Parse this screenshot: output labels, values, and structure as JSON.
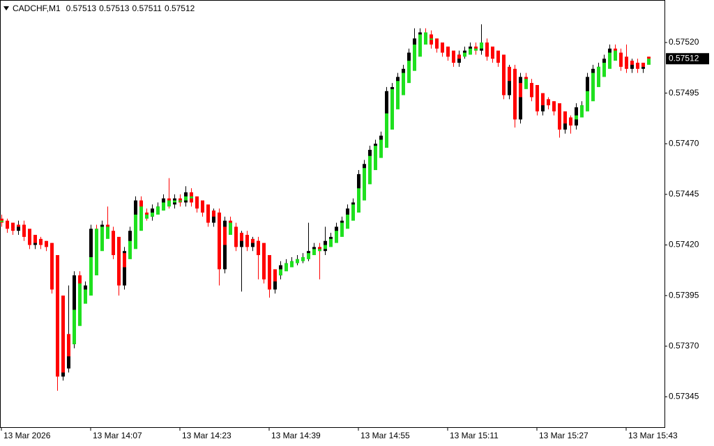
{
  "chart_data": {
    "type": "candlestick",
    "title": "CADCHF,M1",
    "header_values": [
      0.57513,
      0.57513,
      0.57511,
      0.57512
    ],
    "current_price": 0.57512,
    "x": [
      "13 Mar 13:51",
      "13 Mar 13:52",
      "13 Mar 13:53",
      "13 Mar 13:54",
      "13 Mar 13:55",
      "13 Mar 13:56",
      "13 Mar 13:57",
      "13 Mar 13:58",
      "13 Mar 13:59",
      "13 Mar 14:00",
      "13 Mar 14:01",
      "13 Mar 14:02",
      "13 Mar 14:03",
      "13 Mar 14:04",
      "13 Mar 14:05",
      "13 Mar 14:06",
      "13 Mar 14:07",
      "13 Mar 14:08",
      "13 Mar 14:09",
      "13 Mar 14:10",
      "13 Mar 14:11",
      "13 Mar 14:12",
      "13 Mar 14:13",
      "13 Mar 14:14",
      "13 Mar 14:15",
      "13 Mar 14:16",
      "13 Mar 14:17",
      "13 Mar 14:18",
      "13 Mar 14:19",
      "13 Mar 14:20",
      "13 Mar 14:21",
      "13 Mar 14:22",
      "13 Mar 14:23",
      "13 Mar 14:24",
      "13 Mar 14:25",
      "13 Mar 14:26",
      "13 Mar 14:27",
      "13 Mar 14:28",
      "13 Mar 14:29",
      "13 Mar 14:30",
      "13 Mar 14:31",
      "13 Mar 14:32",
      "13 Mar 14:33",
      "13 Mar 14:34",
      "13 Mar 14:35",
      "13 Mar 14:36",
      "13 Mar 14:37",
      "13 Mar 14:38",
      "13 Mar 14:39",
      "13 Mar 14:40",
      "13 Mar 14:41",
      "13 Mar 14:42",
      "13 Mar 14:43",
      "13 Mar 14:44",
      "13 Mar 14:45",
      "13 Mar 14:46",
      "13 Mar 14:47",
      "13 Mar 14:48",
      "13 Mar 14:49",
      "13 Mar 14:50",
      "13 Mar 14:51",
      "13 Mar 14:52",
      "13 Mar 14:53",
      "13 Mar 14:54",
      "13 Mar 14:55",
      "13 Mar 14:56",
      "13 Mar 14:57",
      "13 Mar 14:58",
      "13 Mar 14:59",
      "13 Mar 15:00",
      "13 Mar 15:01",
      "13 Mar 15:02",
      "13 Mar 15:03",
      "13 Mar 15:04",
      "13 Mar 15:05",
      "13 Mar 15:06",
      "13 Mar 15:07",
      "13 Mar 15:08",
      "13 Mar 15:09",
      "13 Mar 15:10",
      "13 Mar 15:11",
      "13 Mar 15:12",
      "13 Mar 15:13",
      "13 Mar 15:14",
      "13 Mar 15:15",
      "13 Mar 15:16",
      "13 Mar 15:17",
      "13 Mar 15:18",
      "13 Mar 15:19",
      "13 Mar 15:20",
      "13 Mar 15:21",
      "13 Mar 15:22",
      "13 Mar 15:23",
      "13 Mar 15:24",
      "13 Mar 15:25",
      "13 Mar 15:26",
      "13 Mar 15:27",
      "13 Mar 15:28",
      "13 Mar 15:29",
      "13 Mar 15:30",
      "13 Mar 15:31",
      "13 Mar 15:32",
      "13 Mar 15:33",
      "13 Mar 15:34",
      "13 Mar 15:35",
      "13 Mar 15:36",
      "13 Mar 15:37",
      "13 Mar 15:38",
      "13 Mar 15:39",
      "13 Mar 15:40",
      "13 Mar 15:41",
      "13 Mar 15:42",
      "13 Mar 15:43",
      "13 Mar 15:44",
      "13 Mar 15:45",
      "13 Mar 15:46",
      "13 Mar 15:47"
    ],
    "open": [
      0.57433,
      0.57431,
      0.57428,
      0.57427,
      0.5743,
      0.57424,
      0.5742,
      0.57422,
      0.5742,
      0.57419,
      0.57398,
      0.57355,
      0.57359,
      0.57371,
      0.57405,
      0.57396,
      0.574,
      0.57428,
      0.57427,
      0.5743,
      0.57427,
      0.57415,
      0.574,
      0.57417,
      0.57427,
      0.57442,
      0.57436,
      0.57434,
      0.57438,
      0.57439,
      0.57443,
      0.5744,
      0.57443,
      0.57441,
      0.57446,
      0.57441,
      0.57438,
      0.57436,
      0.57431,
      0.57436,
      0.57408,
      0.57432,
      0.57429,
      0.57419,
      0.57425,
      0.57419,
      0.57422,
      0.57415,
      0.57403,
      0.57398,
      0.57405,
      0.5741,
      0.57411,
      0.57412,
      0.57413,
      0.57414,
      0.57417,
      0.57419,
      0.57417,
      0.57422,
      0.57424,
      0.57429,
      0.57432,
      0.57438,
      0.57441,
      0.57455,
      0.5746,
      0.57467,
      0.5747,
      0.57474,
      0.57496,
      0.57498,
      0.57503,
      0.57507,
      0.57515,
      0.57522,
      0.57525,
      0.57524,
      0.57519,
      0.57517,
      0.57515,
      0.57513,
      0.5751,
      0.57514,
      0.57516,
      0.57518,
      0.57516,
      0.5752,
      0.57513,
      0.57512,
      0.5751,
      0.57494,
      0.57507,
      0.57482,
      0.57503,
      0.575,
      0.57493,
      0.57486,
      0.57491,
      0.57489,
      0.57486,
      0.57477,
      0.57482,
      0.57479,
      0.57488,
      0.57489,
      0.57503,
      0.57507,
      0.57508,
      0.57512,
      0.57517,
      0.57515,
      0.57508,
      0.57507,
      0.5751,
      0.57507,
      0.57513
    ],
    "high": [
      0.57435,
      0.57433,
      0.5743,
      0.57432,
      0.57432,
      0.57426,
      0.57424,
      0.57424,
      0.57422,
      0.57421,
      0.574,
      0.57361,
      0.574,
      0.57407,
      0.57407,
      0.57402,
      0.5743,
      0.5743,
      0.57432,
      0.57439,
      0.57429,
      0.57417,
      0.57419,
      0.57429,
      0.57444,
      0.57444,
      0.57438,
      0.5744,
      0.57441,
      0.57445,
      0.57453,
      0.57445,
      0.57445,
      0.57449,
      0.57448,
      0.57443,
      0.5744,
      0.57438,
      0.57438,
      0.57438,
      0.57434,
      0.57434,
      0.57431,
      0.57427,
      0.57427,
      0.57424,
      0.57424,
      0.57417,
      0.57405,
      0.57407,
      0.57412,
      0.57413,
      0.57414,
      0.57415,
      0.57416,
      0.57431,
      0.57421,
      0.57421,
      0.57429,
      0.57426,
      0.57431,
      0.57434,
      0.5744,
      0.57443,
      0.57457,
      0.57462,
      0.57469,
      0.57472,
      0.57476,
      0.57498,
      0.575,
      0.57505,
      0.57509,
      0.57517,
      0.57527,
      0.57527,
      0.57527,
      0.57526,
      0.57521,
      0.57519,
      0.57517,
      0.57515,
      0.57516,
      0.57518,
      0.5752,
      0.5752,
      0.57529,
      0.57522,
      0.57515,
      0.57514,
      0.57512,
      0.57509,
      0.57509,
      0.57505,
      0.57505,
      0.57502,
      0.57495,
      0.57493,
      0.57493,
      0.57491,
      0.57488,
      0.57484,
      0.57484,
      0.5749,
      0.57491,
      0.57505,
      0.57509,
      0.5751,
      0.57514,
      0.57519,
      0.57519,
      0.57517,
      0.57519,
      0.57512,
      0.57512,
      0.5751,
      0.57513
    ],
    "low": [
      0.57429,
      0.57426,
      0.57425,
      0.57425,
      0.57422,
      0.57418,
      0.57418,
      0.57418,
      0.57417,
      0.57396,
      0.57348,
      0.57353,
      0.57357,
      0.57369,
      0.57394,
      0.57394,
      0.57398,
      0.57425,
      0.57425,
      0.57425,
      0.57413,
      0.57395,
      0.57398,
      0.57415,
      0.57425,
      0.57434,
      0.57432,
      0.57432,
      0.57436,
      0.57437,
      0.57438,
      0.57438,
      0.57439,
      0.57439,
      0.57439,
      0.57436,
      0.57434,
      0.57429,
      0.57429,
      0.574,
      0.57406,
      0.57427,
      0.57417,
      0.57397,
      0.57417,
      0.57417,
      0.57403,
      0.57401,
      0.57394,
      0.57396,
      0.57403,
      0.57408,
      0.57409,
      0.5741,
      0.57411,
      0.57412,
      0.57415,
      0.57403,
      0.57415,
      0.5742,
      0.57422,
      0.57427,
      0.5743,
      0.57436,
      0.57439,
      0.57453,
      0.57458,
      0.57465,
      0.57468,
      0.57472,
      0.57494,
      0.57496,
      0.57501,
      0.57505,
      0.57513,
      0.5752,
      0.57522,
      0.57517,
      0.57515,
      0.57513,
      0.57511,
      0.57508,
      0.57508,
      0.57512,
      0.57514,
      0.57514,
      0.57514,
      0.57511,
      0.5751,
      0.57508,
      0.57492,
      0.57492,
      0.57478,
      0.5748,
      0.57498,
      0.57491,
      0.57484,
      0.57484,
      0.57487,
      0.57484,
      0.57473,
      0.57475,
      0.57475,
      0.57477,
      0.57486,
      0.57487,
      0.57501,
      0.57505,
      0.57506,
      0.5751,
      0.57513,
      0.57506,
      0.57505,
      0.57505,
      0.57505,
      0.57505,
      0.57511
    ],
    "close": [
      0.57431,
      0.57428,
      0.57427,
      0.5743,
      0.57424,
      0.5742,
      0.57422,
      0.5742,
      0.57419,
      0.57398,
      0.57355,
      0.57359,
      0.57371,
      0.57405,
      0.57396,
      0.574,
      0.57428,
      0.57427,
      0.5743,
      0.57427,
      0.57415,
      0.574,
      0.57417,
      0.57427,
      0.57442,
      0.57436,
      0.57434,
      0.57438,
      0.57439,
      0.57443,
      0.5744,
      0.57443,
      0.57441,
      0.57446,
      0.57441,
      0.57438,
      0.57436,
      0.57431,
      0.57436,
      0.57408,
      0.57432,
      0.57429,
      0.57419,
      0.57425,
      0.57419,
      0.57422,
      0.57415,
      0.57403,
      0.57398,
      0.57405,
      0.5741,
      0.57411,
      0.57412,
      0.57413,
      0.57414,
      0.57417,
      0.57419,
      0.57417,
      0.57422,
      0.57424,
      0.57429,
      0.57432,
      0.57438,
      0.57441,
      0.57455,
      0.5746,
      0.57467,
      0.5747,
      0.57474,
      0.57496,
      0.57498,
      0.57503,
      0.57507,
      0.57515,
      0.57522,
      0.57525,
      0.57524,
      0.57519,
      0.57517,
      0.57515,
      0.57513,
      0.5751,
      0.57514,
      0.57516,
      0.57518,
      0.57516,
      0.5752,
      0.57513,
      0.57512,
      0.5751,
      0.57494,
      0.57507,
      0.57482,
      0.57503,
      0.575,
      0.57493,
      0.57486,
      0.57491,
      0.57489,
      0.57486,
      0.57477,
      0.57482,
      0.57479,
      0.57488,
      0.57489,
      0.57503,
      0.57507,
      0.57508,
      0.57512,
      0.57517,
      0.57515,
      0.57508,
      0.57507,
      0.5751,
      0.57507,
      0.57508,
      0.57512
    ],
    "bull_color": "#000000",
    "bear_color": "#ff0000",
    "heiken_ashi": {
      "up_color": "#1fe01f",
      "down_color": "#ff0000",
      "open": [
        0.57432,
        0.57432,
        0.57431,
        0.5743,
        0.5743,
        0.57428,
        0.57425,
        0.57423,
        0.57422,
        0.57421,
        0.57415,
        0.57395,
        0.57376,
        0.57371,
        0.5738,
        0.57391,
        0.57395,
        0.57405,
        0.57417,
        0.57423,
        0.57426,
        0.57424,
        0.57416,
        0.57413,
        0.57418,
        0.57427,
        0.57433,
        0.57434,
        0.57435,
        0.57437,
        0.57439,
        0.57441,
        0.57442,
        0.57442,
        0.57443,
        0.57444,
        0.57442,
        0.5744,
        0.57437,
        0.57436,
        0.57429,
        0.57425,
        0.57428,
        0.57426,
        0.57424,
        0.57423,
        0.57422,
        0.57421,
        0.57415,
        0.57408,
        0.57405,
        0.57407,
        0.57409,
        0.57411,
        0.57412,
        0.57413,
        0.57415,
        0.57417,
        0.57418,
        0.57419,
        0.57421,
        0.57424,
        0.57428,
        0.57432,
        0.57436,
        0.57442,
        0.5745,
        0.57457,
        0.57463,
        0.57468,
        0.57477,
        0.57487,
        0.57494,
        0.575,
        0.57506,
        0.57513,
        0.57519,
        0.57522,
        0.57522,
        0.5752,
        0.57518,
        0.57516,
        0.57514,
        0.57513,
        0.57514,
        0.57516,
        0.57517,
        0.57519,
        0.57518,
        0.57516,
        0.57514,
        0.57508,
        0.57505,
        0.575,
        0.57497,
        0.575,
        0.57499,
        0.57495,
        0.57492,
        0.57491,
        0.5749,
        0.57486,
        0.57483,
        0.57482,
        0.57483,
        0.57486,
        0.57491,
        0.57498,
        0.57503,
        0.57507,
        0.57511,
        0.57514,
        0.57513,
        0.57511,
        0.5751,
        0.5751,
        0.57509
      ],
      "close": [
        0.57432,
        0.5743,
        0.57428,
        0.57429,
        0.57427,
        0.57422,
        0.57421,
        0.57421,
        0.5742,
        0.57409,
        0.57375,
        0.57357,
        0.57365,
        0.57388,
        0.57401,
        0.57398,
        0.57414,
        0.57428,
        0.57429,
        0.57429,
        0.57421,
        0.57408,
        0.57409,
        0.57422,
        0.57435,
        0.57439,
        0.57435,
        0.57436,
        0.57439,
        0.57441,
        0.57442,
        0.57442,
        0.57442,
        0.57444,
        0.57444,
        0.5744,
        0.57437,
        0.57434,
        0.57434,
        0.57422,
        0.5742,
        0.57431,
        0.57424,
        0.57422,
        0.57422,
        0.57421,
        0.57419,
        0.57409,
        0.57401,
        0.57402,
        0.57408,
        0.57411,
        0.57412,
        0.57413,
        0.57414,
        0.57416,
        0.57418,
        0.57418,
        0.5742,
        0.57423,
        0.57427,
        0.57431,
        0.57435,
        0.5744,
        0.57448,
        0.57458,
        0.57464,
        0.57469,
        0.57472,
        0.57485,
        0.57497,
        0.57501,
        0.57505,
        0.57511,
        0.57519,
        0.57524,
        0.57525,
        0.57522,
        0.57518,
        0.57516,
        0.57514,
        0.57512,
        0.57512,
        0.57515,
        0.57517,
        0.57517,
        0.5752,
        0.57517,
        0.57513,
        0.57511,
        0.57502,
        0.57501,
        0.57495,
        0.57493,
        0.57502,
        0.57497,
        0.5749,
        0.57489,
        0.5749,
        0.57488,
        0.57482,
        0.5748,
        0.57481,
        0.57484,
        0.57489,
        0.57496,
        0.57505,
        0.57508,
        0.5751,
        0.57515,
        0.57516,
        0.57512,
        0.57508,
        0.57509,
        0.57509,
        0.57508,
        0.57512
      ]
    },
    "ylim": [
      0.5733,
      0.57541
    ],
    "yticks": [
      {
        "value": 0.5752,
        "label": "0.57520"
      },
      0.57495,
      {
        "value": 0.5747,
        "label": "0.57470"
      },
      0.57445,
      {
        "value": 0.5742,
        "label": "0.57420"
      },
      0.57395,
      {
        "value": 0.5737,
        "label": "0.57370"
      },
      0.57345
    ],
    "xticks": [
      {
        "value": "13 Mar 13:51",
        "label": "13 Mar 2026"
      },
      "13 Mar 14:07",
      "13 Mar 14:23",
      "13 Mar 14:39",
      "13 Mar 14:55",
      "13 Mar 15:11",
      "13 Mar 15:27",
      "13 Mar 15:43"
    ]
  }
}
